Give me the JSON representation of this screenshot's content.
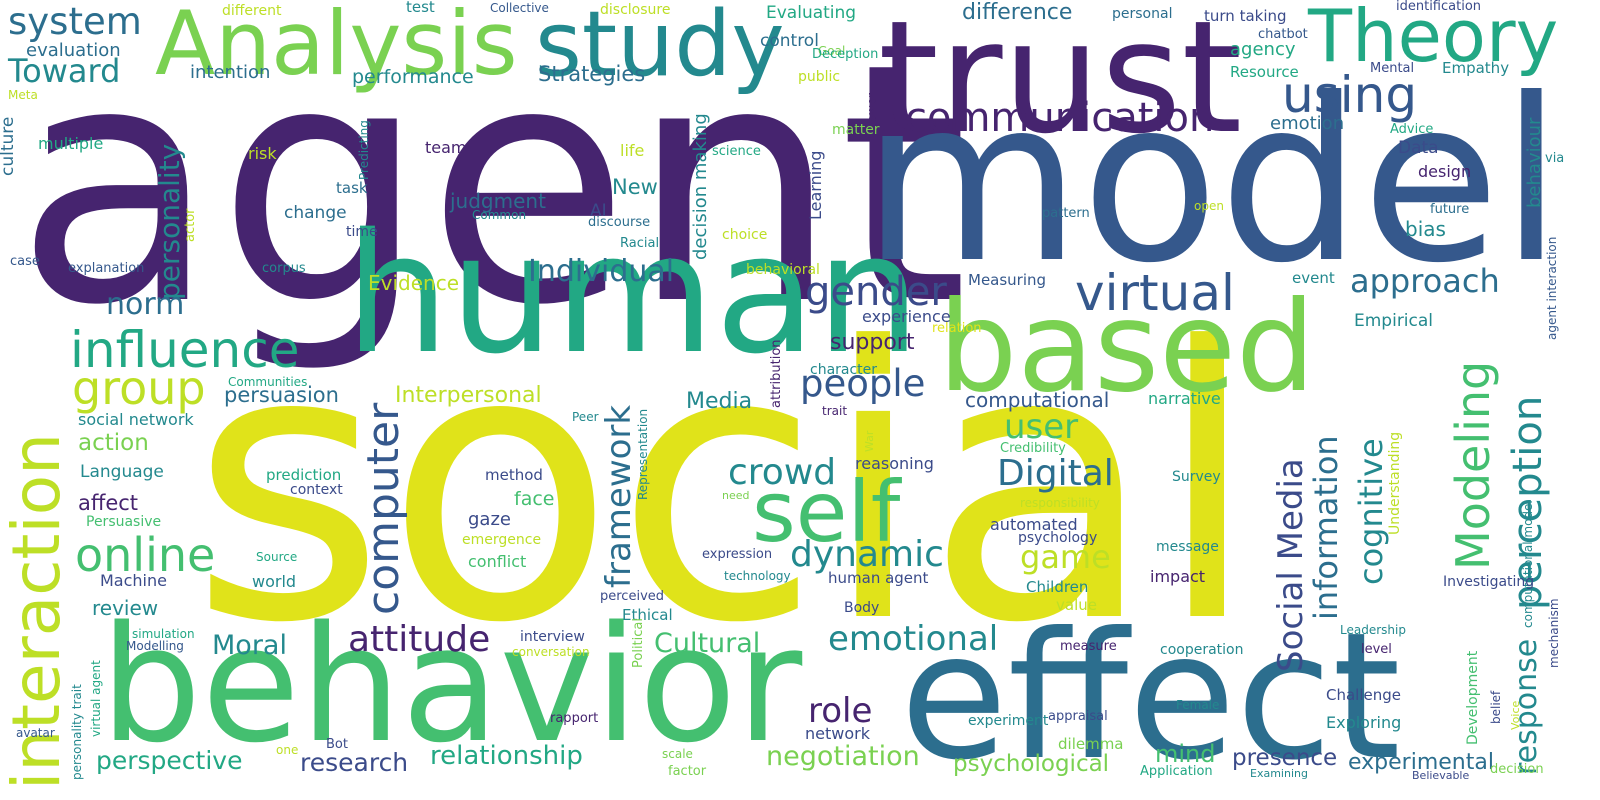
{
  "palette": {
    "deep_purple": "#46246f",
    "indigo": "#3b4b8a",
    "steel_blue": "#35588c",
    "teal_blue": "#2c6e8e",
    "teal": "#23898e",
    "sea_green": "#22a884",
    "green": "#44bf70",
    "light_green": "#7ad151",
    "lime": "#bddf26",
    "yellow": "#e0e31a"
  },
  "words": {
    "agent": "agent",
    "social": "social",
    "model": "model",
    "human": "human",
    "trust": "trust",
    "based": "based",
    "effect": "effect",
    "behavior": "behavior",
    "analysis": "Analysis",
    "study": "study",
    "theory": "Theory",
    "interaction": "interaction",
    "self": "self",
    "influence": "influence",
    "system": "system",
    "toward": "Toward",
    "communication": "communication",
    "using": "using",
    "virtual": "virtual",
    "gender": "gender",
    "people": "people",
    "online": "online",
    "group": "group",
    "computer": "computer",
    "personality": "personality",
    "modeling": "Modeling",
    "perception": "perception",
    "social_media": "Social Media",
    "information": "information",
    "cognitive": "cognitive",
    "response": "response",
    "digital": "Digital",
    "dynamic": "dynamic",
    "crowd": "crowd",
    "attitude": "attitude",
    "emotional": "emotional",
    "role": "role",
    "framework": "framework",
    "individual": "Individual",
    "approach": "approach",
    "negotiation": "negotiation",
    "relationship": "relationship",
    "perspective": "perspective",
    "research": "research",
    "psychological": "psychological",
    "presence": "presence",
    "experimental": "experimental",
    "moral": "Moral",
    "cultural": "Cultural",
    "user": "user",
    "game": "game",
    "norm": "norm",
    "difference": "difference",
    "evaluation": "evaluation",
    "intention": "intention",
    "performance": "performance",
    "strategies": "Strategies",
    "control": "control",
    "evaluating": "Evaluating",
    "agency": "agency",
    "turn_taking": "turn taking",
    "personal": "personal",
    "different": "different",
    "test": "test",
    "collective": "Collective",
    "disclosure": "disclosure",
    "identification": "identification",
    "goal": "Goal",
    "deception": "Deception",
    "chatbot": "chatbot",
    "resource": "Resource",
    "mental": "Mental",
    "empathy": "Empathy",
    "public": "public",
    "meta": "Meta",
    "emotion": "emotion",
    "power": "power",
    "matter": "matter",
    "advice": "Advice",
    "via": "via",
    "behaviour": "behaviour",
    "culture": "culture",
    "multiple": "multiple",
    "risk": "risk",
    "predicting": "Predicting",
    "team": "team",
    "life": "life",
    "science": "science",
    "learning": "Learning",
    "data": "Data",
    "design": "design",
    "task": "task",
    "judgment": "judgment",
    "new": "New",
    "decision_making": "decision making",
    "open": "open",
    "future": "future",
    "ai": "AI",
    "change": "change",
    "common": "Common",
    "discourse": "discourse",
    "time": "time",
    "actor": "actor",
    "racial": "Racial",
    "choice": "choice",
    "bias": "bias",
    "pattern": "pattern",
    "case": "case",
    "explanation": "explanation",
    "corpus": "corpus",
    "behavioral": "behavioral",
    "agent_interaction": "agent interaction",
    "measuring": "Measuring",
    "event": "event",
    "evidence": "Evidence",
    "experience": "experience",
    "relation": "relation",
    "empirical": "Empirical",
    "support": "support",
    "attribution": "attribution",
    "communities": "Communities",
    "character": "character",
    "persuasion": "persuasion",
    "interpersonal": "Interpersonal",
    "narrative": "narrative",
    "media": "Media",
    "trait": "trait",
    "peer": "Peer",
    "representation": "Representation",
    "computational": "computational",
    "social_network": "social network",
    "action": "action",
    "credibility": "Credibility",
    "war": "War",
    "reasoning": "reasoning",
    "understanding": "Understanding",
    "computational_model": "computational model",
    "language": "Language",
    "prediction": "prediction",
    "method": "method",
    "context": "context",
    "survey": "Survey",
    "affect": "affect",
    "face": "face",
    "need": "need",
    "responsibility": "responsibility",
    "persuasive": "Persuasive",
    "gaze": "gaze",
    "automated": "automated",
    "psychology": "psychology",
    "emergence": "emergence",
    "source": "Source",
    "expression": "expression",
    "message": "message",
    "conflict": "conflict",
    "technology": "technology",
    "human_agent": "human agent",
    "impact": "impact",
    "machine": "Machine",
    "world": "world",
    "children": "Children",
    "investigating": "Investigating",
    "perceived": "perceived",
    "review": "review",
    "ethical": "Ethical",
    "body": "Body",
    "value": "value",
    "mechanism": "mechanism",
    "simulation": "simulation",
    "modelling": "Modelling",
    "interview": "interview",
    "conversation": "conversation",
    "political": "Political",
    "leadership": "Leadership",
    "measure": "measure",
    "cooperation": "cooperation",
    "level": "level",
    "development": "Development",
    "belief": "belief",
    "voice": "Voice",
    "personality_trait": "personality trait",
    "virtual_agent": "virtual agent",
    "challenge": "Challenge",
    "female": "Female",
    "network": "network",
    "appraisal": "appraisal",
    "experiment": "experiment",
    "exploring": "Exploring",
    "avatar": "avatar",
    "one": "one",
    "bot": "Bot",
    "rapport": "rapport",
    "scale": "scale",
    "dilemma": "dilemma",
    "mind": "mind",
    "factor": "factor",
    "application": "Application",
    "examining": "Examining",
    "believable": "Believable",
    "decision": "decision"
  }
}
